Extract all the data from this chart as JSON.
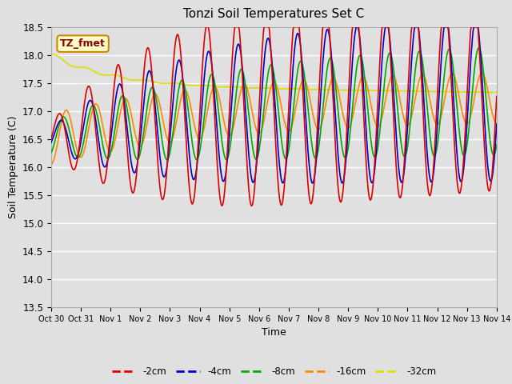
{
  "title": "Tonzi Soil Temperatures Set C",
  "xlabel": "Time",
  "ylabel": "Soil Temperature (C)",
  "ylim": [
    13.5,
    18.5
  ],
  "series_labels": [
    "-2cm",
    "-4cm",
    "-8cm",
    "-16cm",
    "-32cm"
  ],
  "series_colors": [
    "#dd0000",
    "#0000cc",
    "#00aa00",
    "#ff8800",
    "#dddd00"
  ],
  "xtick_labels": [
    "Oct 30",
    "Oct 31",
    "Nov 1",
    "Nov 2",
    "Nov 3",
    "Nov 4",
    "Nov 5",
    "Nov 6",
    "Nov 7",
    "Nov 8",
    "Nov 9",
    "Nov 10",
    "Nov 11",
    "Nov 12",
    "Nov 13",
    "Nov 14"
  ],
  "annotation_text": "TZ_fmet",
  "background_color": "#e0e0e0",
  "grid_color": "white",
  "yticks": [
    13.5,
    14.0,
    14.5,
    15.0,
    15.5,
    16.0,
    16.5,
    17.0,
    17.5,
    18.0,
    18.5
  ],
  "figsize": [
    6.4,
    4.8
  ],
  "dpi": 100
}
